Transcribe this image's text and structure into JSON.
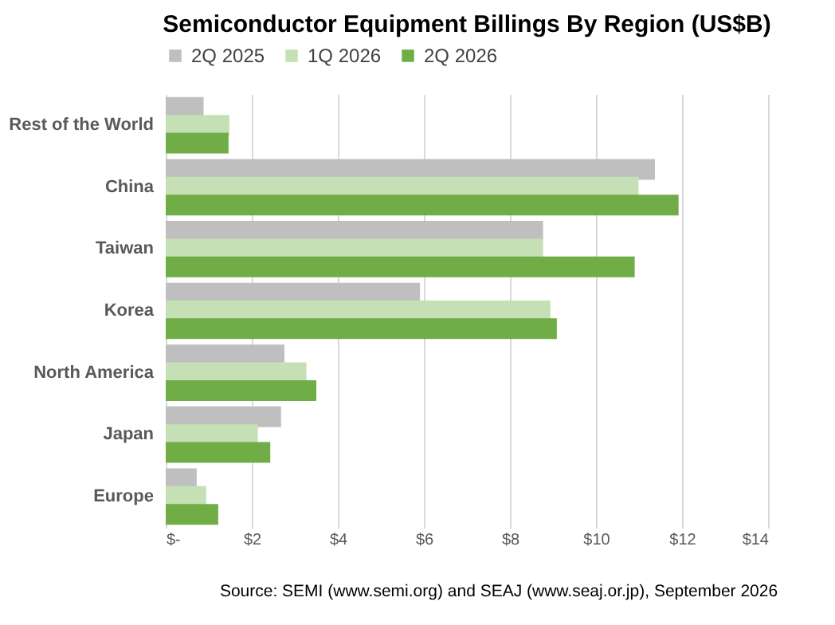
{
  "chart_data": {
    "type": "bar",
    "orientation": "horizontal",
    "title": "Semiconductor Equipment Billings By Region (US$B)",
    "categories": [
      "Rest of the World",
      "China",
      "Taiwan",
      "Korea",
      "North America",
      "Japan",
      "Europe"
    ],
    "series": [
      {
        "name": "2Q 2025",
        "color": "#bfbfbf",
        "values": [
          0.88,
          11.37,
          8.77,
          5.91,
          2.76,
          2.68,
          0.72
        ]
      },
      {
        "name": "1Q 2026",
        "color": "#c5e0b4",
        "values": [
          1.48,
          10.99,
          8.77,
          8.94,
          3.27,
          2.14,
          0.94
        ]
      },
      {
        "name": "2Q 2026",
        "color": "#70ad47",
        "values": [
          1.46,
          11.92,
          10.9,
          9.09,
          3.5,
          2.43,
          1.22
        ]
      }
    ],
    "xlim": [
      0,
      14
    ],
    "xticks": [
      {
        "value": 0,
        "label": "$-"
      },
      {
        "value": 2,
        "label": "$2"
      },
      {
        "value": 4,
        "label": "$4"
      },
      {
        "value": 6,
        "label": "$6"
      },
      {
        "value": 8,
        "label": "$8"
      },
      {
        "value": 10,
        "label": "$10"
      },
      {
        "value": 12,
        "label": "$12"
      },
      {
        "value": 14,
        "label": "$14"
      }
    ],
    "grid": "x",
    "legend": "top",
    "annotations": [
      "Source: SEMI (www.semi.org) and SEAJ (www.seaj.or.jp), September 2026"
    ]
  }
}
